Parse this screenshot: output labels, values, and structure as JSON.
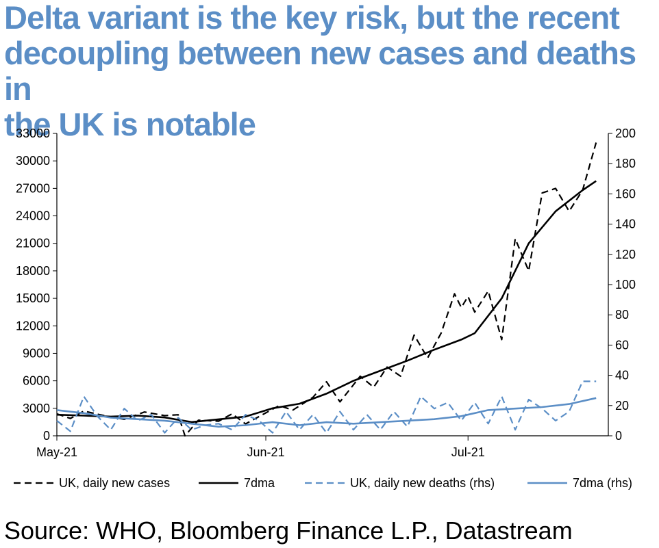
{
  "title_lines": [
    "Delta variant is the key risk, but the recent",
    "decoupling between new cases and deaths in",
    "the UK is notable"
  ],
  "source": "Source: WHO, Bloomberg Finance L.P., Datastream",
  "colors": {
    "title": "#5b8ec6",
    "cases": "#000000",
    "deaths": "#5b8ec6"
  },
  "chart_data": {
    "type": "line",
    "x_ticks": [
      "May-21",
      "Jun-21",
      "Jul-21"
    ],
    "x_tick_dates": [
      "2021-05-01",
      "2021-06-01",
      "2021-07-01"
    ],
    "x_range": [
      "2021-05-01",
      "2021-07-21"
    ],
    "y_left": {
      "ticks": [
        0,
        3000,
        6000,
        9000,
        12000,
        15000,
        18000,
        21000,
        24000,
        27000,
        30000,
        33000
      ],
      "lim": [
        0,
        33000
      ]
    },
    "y_right": {
      "ticks": [
        0,
        20,
        40,
        60,
        80,
        100,
        120,
        140,
        160,
        180,
        200
      ],
      "lim": [
        0,
        200
      ]
    },
    "grid": false,
    "legend_position": "bottom",
    "series": [
      {
        "name": "UK, daily new cases",
        "axis": "left",
        "style": "dashed",
        "color": "#000000",
        "x": [
          "2021-05-01",
          "2021-05-03",
          "2021-05-05",
          "2021-05-08",
          "2021-05-11",
          "2021-05-14",
          "2021-05-17",
          "2021-05-19",
          "2021-05-20",
          "2021-05-22",
          "2021-05-25",
          "2021-05-27",
          "2021-05-29",
          "2021-06-01",
          "2021-06-03",
          "2021-06-05",
          "2021-06-08",
          "2021-06-10",
          "2021-06-12",
          "2021-06-15",
          "2021-06-17",
          "2021-06-19",
          "2021-06-21",
          "2021-06-23",
          "2021-06-25",
          "2021-06-27",
          "2021-06-29",
          "2021-06-30",
          "2021-07-01",
          "2021-07-02",
          "2021-07-04",
          "2021-07-06",
          "2021-07-08",
          "2021-07-10",
          "2021-07-12",
          "2021-07-14",
          "2021-07-16",
          "2021-07-18",
          "2021-07-20"
        ],
        "y": [
          2400,
          1900,
          2700,
          2200,
          1800,
          2600,
          2200,
          2300,
          0,
          1700,
          1600,
          2400,
          1300,
          2500,
          3300,
          2800,
          4200,
          5900,
          3700,
          6500,
          5300,
          7500,
          6500,
          11000,
          8500,
          11200,
          15500,
          14000,
          15200,
          13500,
          15800,
          10500,
          21500,
          18000,
          26500,
          27000,
          24500,
          26800,
          32000
        ],
        "y_compact_alias": []
      },
      {
        "name": "7dma",
        "axis": "left",
        "style": "solid",
        "color": "#000000",
        "x": [
          "2021-05-01",
          "2021-05-05",
          "2021-05-09",
          "2021-05-13",
          "2021-05-17",
          "2021-05-21",
          "2021-05-25",
          "2021-05-29",
          "2021-06-02",
          "2021-06-06",
          "2021-06-10",
          "2021-06-14",
          "2021-06-18",
          "2021-06-22",
          "2021-06-26",
          "2021-06-30",
          "2021-07-02",
          "2021-07-06",
          "2021-07-10",
          "2021-07-14",
          "2021-07-18",
          "2021-07-20"
        ],
        "y": [
          2300,
          2200,
          2100,
          2200,
          2000,
          1500,
          1800,
          2100,
          3000,
          3500,
          4600,
          6000,
          7100,
          8200,
          9400,
          10500,
          11200,
          15000,
          21000,
          24500,
          26800,
          27800
        ]
      },
      {
        "name": "UK, daily new deaths (rhs)",
        "axis": "right",
        "style": "dashed",
        "color": "#5b8ec6",
        "x": [
          "2021-05-01",
          "2021-05-03",
          "2021-05-05",
          "2021-05-07",
          "2021-05-09",
          "2021-05-11",
          "2021-05-13",
          "2021-05-15",
          "2021-05-17",
          "2021-05-19",
          "2021-05-21",
          "2021-05-23",
          "2021-05-25",
          "2021-05-27",
          "2021-05-29",
          "2021-05-31",
          "2021-06-02",
          "2021-06-04",
          "2021-06-06",
          "2021-06-08",
          "2021-06-10",
          "2021-06-12",
          "2021-06-14",
          "2021-06-16",
          "2021-06-18",
          "2021-06-20",
          "2021-06-22",
          "2021-06-24",
          "2021-06-26",
          "2021-06-28",
          "2021-06-30",
          "2021-07-02",
          "2021-07-04",
          "2021-07-06",
          "2021-07-08",
          "2021-07-10",
          "2021-07-12",
          "2021-07-14",
          "2021-07-16",
          "2021-07-18",
          "2021-07-20"
        ],
        "y": [
          10,
          3,
          26,
          13,
          4,
          18,
          10,
          14,
          2,
          12,
          4,
          7,
          8,
          4,
          14,
          10,
          2,
          16,
          4,
          14,
          2,
          16,
          4,
          14,
          4,
          16,
          6,
          26,
          18,
          22,
          10,
          22,
          8,
          26,
          4,
          24,
          18,
          10,
          16,
          36,
          36
        ]
      },
      {
        "name": "7dma (rhs)",
        "axis": "right",
        "style": "solid",
        "color": "#5b8ec6",
        "x": [
          "2021-05-01",
          "2021-05-05",
          "2021-05-09",
          "2021-05-13",
          "2021-05-17",
          "2021-05-21",
          "2021-05-25",
          "2021-05-29",
          "2021-06-02",
          "2021-06-06",
          "2021-06-10",
          "2021-06-14",
          "2021-06-18",
          "2021-06-22",
          "2021-06-26",
          "2021-06-30",
          "2021-07-04",
          "2021-07-08",
          "2021-07-12",
          "2021-07-16",
          "2021-07-20"
        ],
        "y": [
          17,
          15,
          12,
          11,
          10,
          8,
          6,
          7,
          9,
          7,
          9,
          8,
          9,
          10,
          11,
          13,
          17,
          18,
          19,
          21,
          25
        ]
      }
    ]
  }
}
